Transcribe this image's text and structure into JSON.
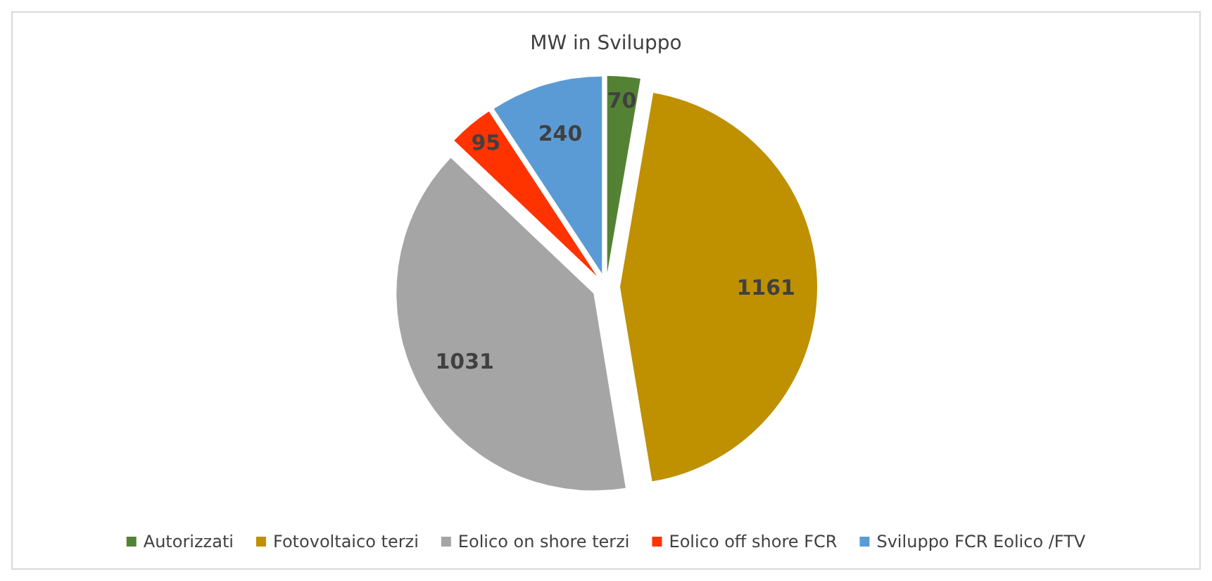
{
  "chart_data": {
    "type": "pie",
    "title": "MW in Sviluppo",
    "categories": [
      "Autorizzati",
      "Fotovoltaico terzi",
      "Eolico on shore terzi",
      "Eolico off shore FCR",
      "Sviluppo FCR Eolico /FTV"
    ],
    "values": [
      70,
      1161,
      1031,
      95,
      240
    ],
    "colors": [
      "#548235",
      "#bf9000",
      "#a5a5a5",
      "#ff3300",
      "#5b9bd5"
    ],
    "data_labels": true,
    "legend": "bottom"
  }
}
